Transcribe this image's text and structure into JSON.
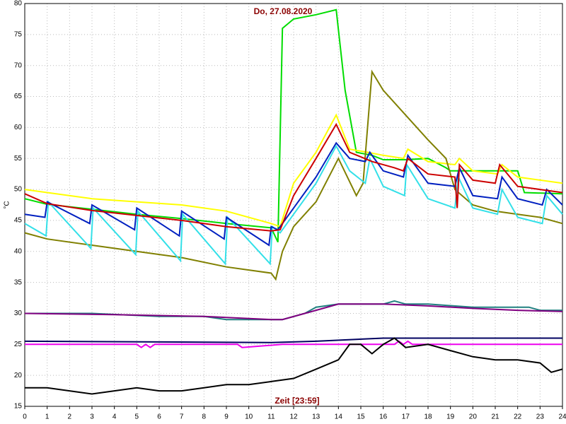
{
  "chart_data": {
    "type": "line",
    "title": "Do, 27.08.2020",
    "xlabel": "Zeit [23:59]",
    "ylabel": "°C",
    "xlim": [
      0,
      24
    ],
    "ylim": [
      15,
      80
    ],
    "xticks": [
      0,
      1,
      2,
      3,
      4,
      5,
      6,
      7,
      8,
      9,
      10,
      11,
      12,
      13,
      14,
      15,
      16,
      17,
      18,
      19,
      20,
      21,
      22,
      23,
      24
    ],
    "yticks": [
      15,
      20,
      25,
      30,
      35,
      40,
      45,
      50,
      55,
      60,
      65,
      70,
      75,
      80
    ],
    "grid": true,
    "series": [
      {
        "color": "#00dd00",
        "x": [
          0,
          1,
          3,
          5,
          7,
          9,
          11,
          11.3,
          11.5,
          12,
          13,
          13.9,
          14.3,
          14.8,
          15.5,
          16,
          17,
          18,
          18.8,
          19,
          22,
          22.3,
          24
        ],
        "values": [
          48.5,
          47.6,
          46.8,
          46,
          45.3,
          44.5,
          43.8,
          41.5,
          76,
          77.5,
          78.2,
          79,
          66,
          56,
          55.5,
          54.8,
          54.8,
          55,
          53.5,
          53,
          53,
          49.5,
          49.3
        ]
      },
      {
        "color": "#ffff00",
        "x": [
          0,
          1,
          3,
          5,
          7,
          9,
          11,
          11.4,
          12,
          13,
          13.9,
          14.5,
          15.3,
          16,
          16.9,
          17.1,
          18,
          19.2,
          19.4,
          20,
          21.1,
          21.3,
          22,
          23,
          24
        ],
        "values": [
          50,
          49.5,
          48.5,
          48,
          47.5,
          46.5,
          44.5,
          44,
          51,
          56,
          62,
          56.5,
          56,
          55.5,
          55,
          56.5,
          54.5,
          54,
          55,
          53,
          52.5,
          54,
          52,
          51.5,
          51
        ]
      },
      {
        "color": "#808000",
        "x": [
          0,
          1,
          3,
          5,
          7,
          9,
          11,
          11.2,
          11.5,
          12,
          13,
          14,
          14.8,
          15.1,
          15.5,
          16,
          17,
          18,
          18.8,
          19.2,
          20,
          21,
          22,
          23,
          24
        ],
        "values": [
          43,
          42,
          41,
          40,
          39,
          37.5,
          36.5,
          35.5,
          40,
          44,
          48,
          55,
          49,
          51,
          69,
          66,
          62,
          58,
          55,
          50,
          47.5,
          46.5,
          46,
          45.5,
          44.5
        ]
      },
      {
        "color": "#33e0e8",
        "x": [
          0,
          0.95,
          1.05,
          2.95,
          3.05,
          4.95,
          5.05,
          6.95,
          7.05,
          8.95,
          9.05,
          10.95,
          11.05,
          11.4,
          12,
          13,
          13.9,
          14.5,
          15.2,
          15.4,
          16,
          16.95,
          17.05,
          18,
          19.2,
          19.35,
          20,
          21.1,
          21.3,
          22,
          23.1,
          23.3,
          24
        ],
        "values": [
          44.5,
          42.5,
          48,
          40.5,
          47,
          39.5,
          46.5,
          38.5,
          46,
          38,
          45.5,
          38,
          44,
          43,
          46,
          51,
          57,
          53,
          51,
          55,
          50.5,
          49,
          54,
          48.5,
          47,
          52,
          47,
          46,
          50,
          45.5,
          44.5,
          49,
          46
        ]
      },
      {
        "color": "#0020c0",
        "x": [
          0,
          0.9,
          1,
          2.9,
          3,
          4.9,
          5,
          6.9,
          7,
          8.9,
          9,
          10.9,
          11,
          11.3,
          12,
          13,
          13.9,
          14.5,
          15.2,
          15.4,
          16,
          16.9,
          17.1,
          18,
          19.2,
          19.4,
          20,
          21.1,
          21.3,
          22,
          23.1,
          23.3,
          24
        ],
        "values": [
          46,
          45.5,
          48,
          44.5,
          47.5,
          43.5,
          47,
          42.5,
          46.5,
          42,
          45.5,
          41,
          44,
          43.5,
          47,
          52,
          57.5,
          55,
          54.5,
          56,
          53,
          52,
          55.5,
          51,
          50.5,
          53.5,
          49,
          48.5,
          52,
          48.5,
          47.5,
          50,
          47.5
        ]
      },
      {
        "color": "#cc0000",
        "x": [
          0,
          1,
          3,
          5,
          7,
          9,
          11,
          11.4,
          12,
          13,
          13.9,
          14.5,
          15.5,
          16.5,
          16.9,
          17.1,
          18,
          19.2,
          19.3,
          19.4,
          20,
          21,
          21.2,
          22,
          23,
          24
        ],
        "values": [
          49.3,
          47.7,
          46.6,
          45.8,
          45,
          44,
          43.3,
          43.5,
          49,
          55,
          60.5,
          56,
          54.5,
          53.5,
          53,
          55,
          52.5,
          52,
          47,
          54,
          51.5,
          51,
          54,
          50.5,
          50,
          49.5
        ]
      },
      {
        "color": "#208080",
        "x": [
          0,
          3,
          6,
          8,
          9,
          11,
          11.5,
          12.5,
          13,
          14,
          15,
          16,
          16.5,
          17,
          18,
          20,
          21,
          22,
          22.5,
          23,
          24
        ],
        "values": [
          30,
          30,
          29.5,
          29.5,
          29,
          29,
          29,
          30,
          31,
          31.5,
          31.5,
          31.5,
          32,
          31.5,
          31.5,
          31,
          31,
          31,
          31,
          30.5,
          30.5
        ]
      },
      {
        "color": "#800080",
        "x": [
          0,
          4,
          8,
          11,
          11.5,
          13,
          14,
          16,
          18,
          20,
          22,
          24
        ],
        "values": [
          30,
          29.8,
          29.5,
          29,
          29,
          30.5,
          31.5,
          31.5,
          31.2,
          30.8,
          30.5,
          30.3
        ]
      },
      {
        "color": "#000060",
        "x": [
          0,
          11,
          13,
          16,
          17,
          24
        ],
        "values": [
          25.5,
          25.3,
          25.5,
          26,
          26,
          26
        ]
      },
      {
        "color": "#ee00ee",
        "x": [
          0,
          5,
          5.2,
          5.4,
          5.6,
          5.8,
          6,
          9.5,
          9.7,
          11.5,
          16.5,
          16.7,
          16.9,
          17.1,
          17.3,
          17.5,
          24
        ],
        "values": [
          25,
          25,
          24.5,
          25,
          24.5,
          25,
          25,
          25,
          24.5,
          25,
          25,
          25.5,
          25,
          25.5,
          25,
          25,
          25
        ]
      },
      {
        "color": "#000000",
        "x": [
          0,
          1,
          2,
          3,
          4,
          5,
          6,
          7,
          8,
          9,
          10,
          11,
          12,
          13,
          14,
          14.5,
          15,
          15.5,
          16,
          16.5,
          17,
          18,
          19,
          20,
          21,
          22,
          23,
          23.5,
          24
        ],
        "values": [
          18,
          18,
          17.5,
          17,
          17.5,
          18,
          17.5,
          17.5,
          18,
          18.5,
          18.5,
          19,
          19.5,
          21,
          22.5,
          25,
          25,
          23.5,
          25,
          26,
          24.5,
          25,
          24,
          23,
          22.5,
          22.5,
          22,
          20.5,
          21
        ]
      }
    ]
  }
}
